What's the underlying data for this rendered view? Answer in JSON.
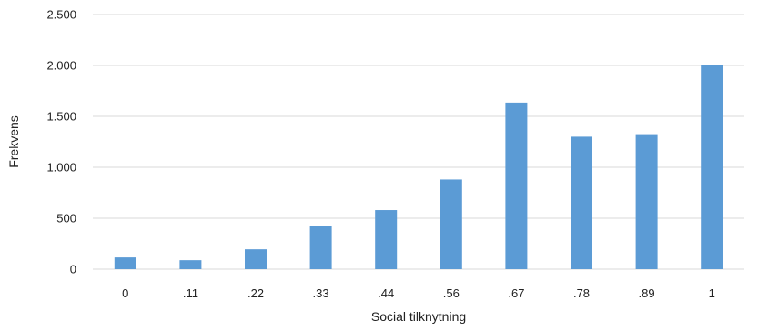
{
  "chart_data": {
    "type": "bar",
    "categories": [
      "0",
      ".11",
      ".22",
      ".33",
      ".44",
      ".56",
      ".67",
      ".78",
      ".89",
      "1"
    ],
    "values": [
      115,
      88,
      195,
      425,
      580,
      880,
      1635,
      1300,
      1325,
      2000
    ],
    "xlabel": "Social tilknytning",
    "ylabel": "Frekvens",
    "ylim": [
      0,
      2500
    ],
    "yticks": [
      0,
      500,
      1000,
      1500,
      2000,
      2500
    ],
    "ytick_labels": [
      "0",
      "500",
      "1.000",
      "1.500",
      "2.000",
      "2.500"
    ],
    "grid": true,
    "legend": "none",
    "bar_color": "#5B9BD5",
    "grid_color": "#D9D9D9"
  }
}
